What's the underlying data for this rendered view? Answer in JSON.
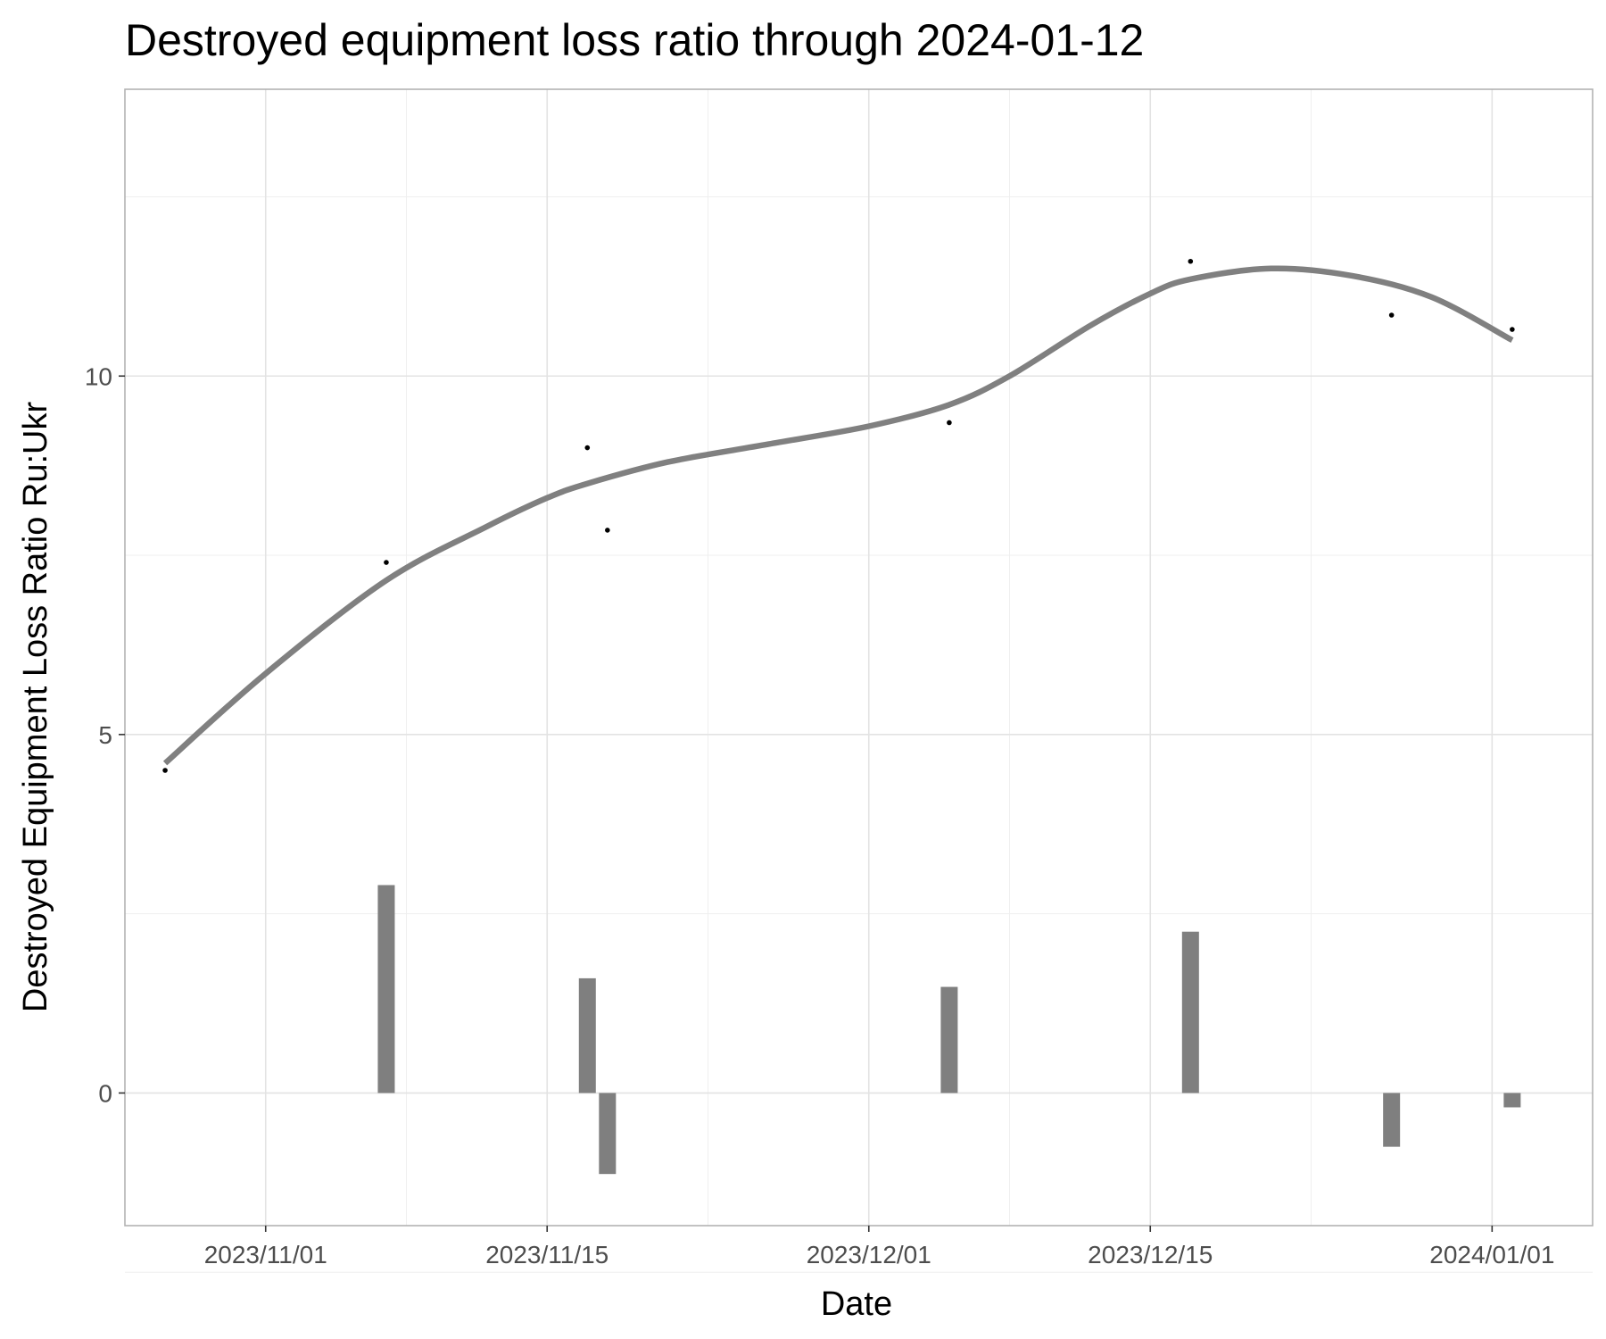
{
  "chart_data": {
    "type": "bar+scatter+line",
    "title": "Destroyed equipment loss ratio through 2024-01-12",
    "xlabel": "Date",
    "ylabel": "Destroyed Equipment Loss Ratio Ru:Ukr",
    "x_axis_type": "date",
    "xlim": [
      "2023-10-25",
      "2024-01-06"
    ],
    "ylim": [
      -1.85,
      14.0
    ],
    "x_ticks": [
      {
        "date": "2023-11-01",
        "label": "2023/11/01"
      },
      {
        "date": "2023-11-15",
        "label": "2023/11/15"
      },
      {
        "date": "2023-12-01",
        "label": "2023/12/01"
      },
      {
        "date": "2023-12-15",
        "label": "2023/12/15"
      },
      {
        "date": "2024-01-01",
        "label": "2024/01/01"
      }
    ],
    "x_minor_gridlines": [
      "2023-10-25",
      "2023-11-08",
      "2023-11-23",
      "2023-12-08",
      "2023-12-23"
    ],
    "y_ticks": [
      {
        "value": 0,
        "label": "0"
      },
      {
        "value": 5,
        "label": "5"
      },
      {
        "value": 10,
        "label": "10"
      }
    ],
    "y_minor_gridlines": [
      -2.5,
      2.5,
      7.5,
      12.5
    ],
    "grid": true,
    "legend": "none",
    "colors": {
      "bars": "#7f7f7f",
      "smooth_line": "#808080",
      "points": "#000000",
      "grid_major": "#e3e3e3",
      "grid_minor": "#efefef",
      "panel_border": "#b3b3b3"
    },
    "points": [
      {
        "date": "2023-10-27",
        "value": 4.5
      },
      {
        "date": "2023-11-07",
        "value": 7.4
      },
      {
        "date": "2023-11-17",
        "value": 9.0
      },
      {
        "date": "2023-11-18",
        "value": 7.85
      },
      {
        "date": "2023-12-05",
        "value": 9.35
      },
      {
        "date": "2023-12-17",
        "value": 11.6
      },
      {
        "date": "2023-12-27",
        "value": 10.85
      },
      {
        "date": "2024-01-02",
        "value": 10.65
      }
    ],
    "bars": [
      {
        "date": "2023-11-07",
        "value": 2.9
      },
      {
        "date": "2023-11-17",
        "value": 1.6
      },
      {
        "date": "2023-11-18",
        "value": -1.13
      },
      {
        "date": "2023-12-05",
        "value": 1.48
      },
      {
        "date": "2023-12-17",
        "value": 2.25
      },
      {
        "date": "2023-12-27",
        "value": -0.75
      },
      {
        "date": "2024-01-02",
        "value": -0.2
      }
    ],
    "smooth_line": [
      {
        "date": "2023-10-27",
        "value": 4.6
      },
      {
        "date": "2023-11-01",
        "value": 5.85
      },
      {
        "date": "2023-11-07",
        "value": 7.15
      },
      {
        "date": "2023-11-12",
        "value": 7.9
      },
      {
        "date": "2023-11-15",
        "value": 8.3
      },
      {
        "date": "2023-11-17",
        "value": 8.5
      },
      {
        "date": "2023-11-21",
        "value": 8.8
      },
      {
        "date": "2023-11-26",
        "value": 9.05
      },
      {
        "date": "2023-12-01",
        "value": 9.3
      },
      {
        "date": "2023-12-05",
        "value": 9.6
      },
      {
        "date": "2023-12-08",
        "value": 10.0
      },
      {
        "date": "2023-12-12",
        "value": 10.7
      },
      {
        "date": "2023-12-15",
        "value": 11.15
      },
      {
        "date": "2023-12-17",
        "value": 11.35
      },
      {
        "date": "2023-12-21",
        "value": 11.5
      },
      {
        "date": "2023-12-25",
        "value": 11.4
      },
      {
        "date": "2023-12-29",
        "value": 11.1
      },
      {
        "date": "2024-01-02",
        "value": 10.5
      }
    ]
  }
}
